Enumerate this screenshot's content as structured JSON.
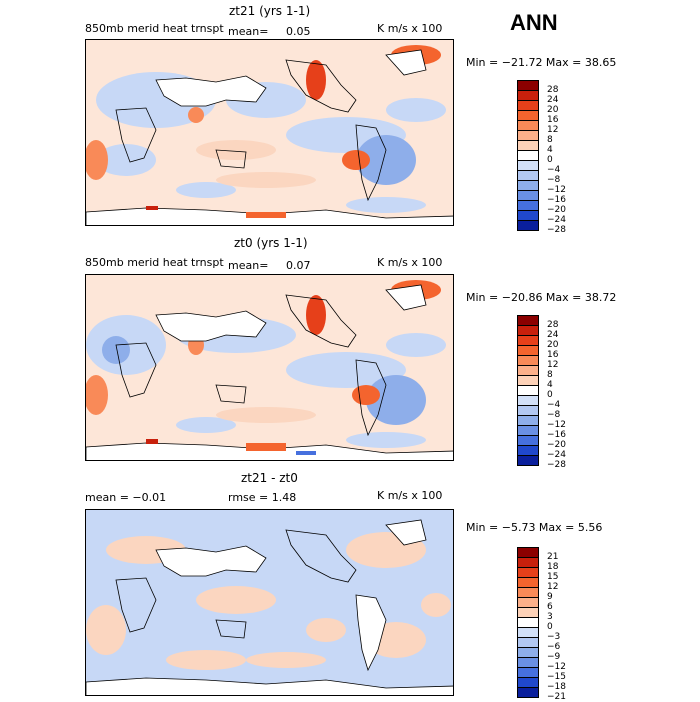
{
  "header": {
    "season": "ANN"
  },
  "panels": [
    {
      "title": "zt21 (yrs 1-1)",
      "field_label": "850mb merid heat trnspt",
      "mean_label": "mean=",
      "mean_value": "0.05",
      "units": "K m/s x 100",
      "minmax": "Min = −21.72 Max =  38.65",
      "levels": [
        "28",
        "24",
        "20",
        "16",
        "12",
        "8",
        "4",
        "0",
        "−4",
        "−8",
        "−12",
        "−16",
        "−20",
        "−24",
        "−28"
      ]
    },
    {
      "title": "zt0 (yrs 1-1)",
      "field_label": "850mb merid heat trnspt",
      "mean_label": "mean=",
      "mean_value": "0.07",
      "units": "K m/s x 100",
      "minmax": "Min = −20.86 Max =  38.72",
      "levels": [
        "28",
        "24",
        "20",
        "16",
        "12",
        "8",
        "4",
        "0",
        "−4",
        "−8",
        "−12",
        "−16",
        "−20",
        "−24",
        "−28"
      ]
    },
    {
      "title": "zt21 - zt0",
      "mean_text": "mean =  −0.01",
      "rmse_text": "rmse =   1.48",
      "units": "K m/s x 100",
      "minmax": "Min =  −5.73 Max =   5.56",
      "levels": [
        "21",
        "18",
        "15",
        "12",
        "9",
        "6",
        "3",
        "0",
        "−3",
        "−6",
        "−9",
        "−12",
        "−15",
        "−18",
        "−21"
      ]
    }
  ],
  "colors": {
    "scale": [
      "#8b0000",
      "#c8200c",
      "#e6401a",
      "#f4642e",
      "#f98a58",
      "#fcb08a",
      "#fdd2b8",
      "#ffffff",
      "#d2e0f8",
      "#b2c8f2",
      "#8eaeea",
      "#6a90e4",
      "#4670de",
      "#2048cc",
      "#0a1f9c"
    ],
    "land": "#ffffff",
    "warm_soft": "#fbd6c0",
    "cool_soft": "#c7d8f6"
  }
}
